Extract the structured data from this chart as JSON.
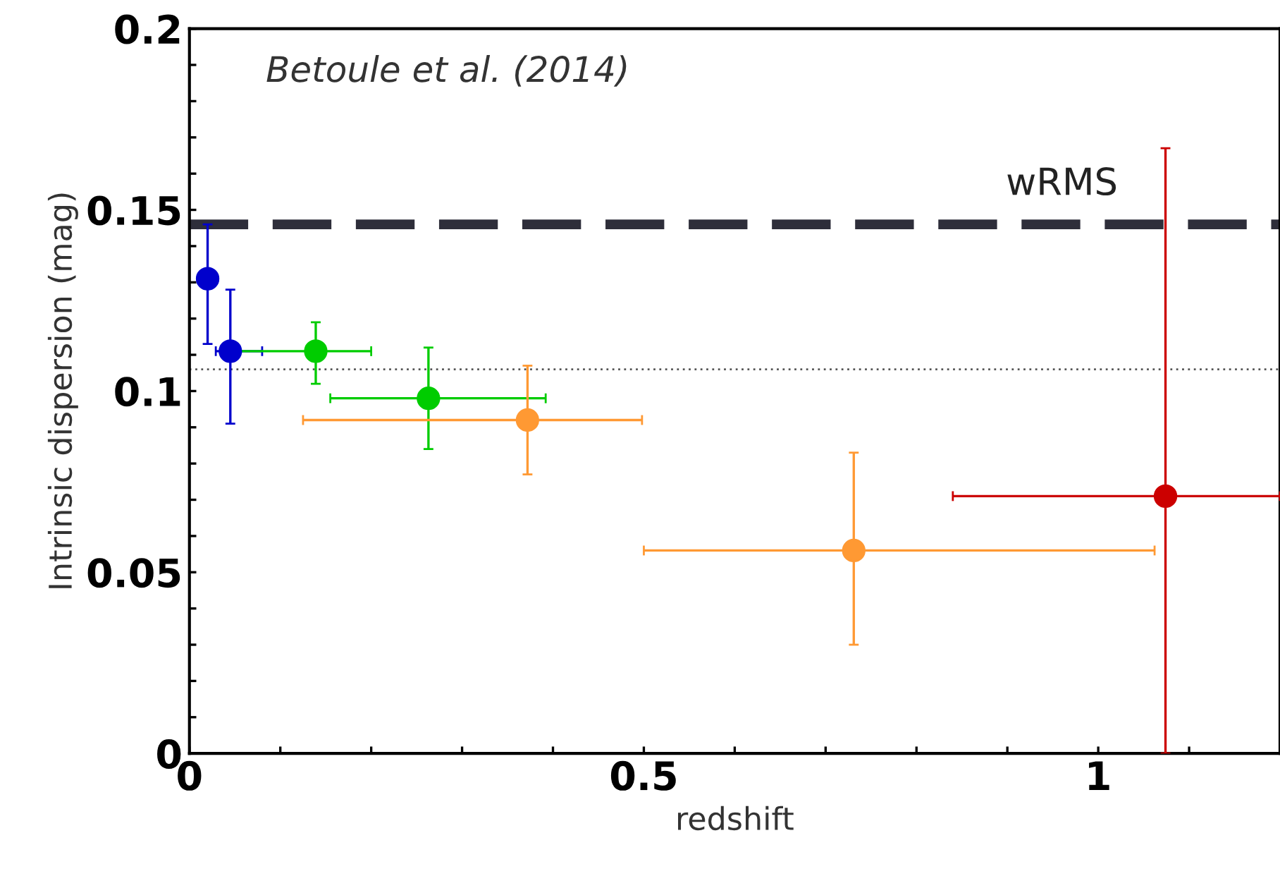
{
  "chart_data": {
    "type": "scatter",
    "xlabel": "redshift",
    "ylabel": "Intrinsic dispersion (mag)",
    "annotations": [
      "Betoule et al. (2014)"
    ],
    "xlim": [
      0,
      1.2
    ],
    "ylim": [
      0,
      0.2
    ],
    "xticks": [
      0,
      {
        "value": 0.1,
        "label": null
      },
      {
        "value": 0.2,
        "label": null
      },
      {
        "value": 0.3,
        "label": null
      },
      {
        "value": 0.4,
        "label": null
      },
      0.5,
      {
        "value": 0.6,
        "label": null
      },
      {
        "value": 0.7,
        "label": null
      },
      {
        "value": 0.8,
        "label": null
      },
      {
        "value": 0.9,
        "label": null
      },
      1,
      {
        "value": 1.1,
        "label": null
      }
    ],
    "yticks": [
      0,
      {
        "value": 0.01,
        "label": null
      },
      {
        "value": 0.02,
        "label": null
      },
      {
        "value": 0.03,
        "label": null
      },
      {
        "value": 0.04,
        "label": null
      },
      0.05,
      {
        "value": 0.06,
        "label": null
      },
      {
        "value": 0.07,
        "label": null
      },
      {
        "value": 0.08,
        "label": null
      },
      {
        "value": 0.09,
        "label": null
      },
      0.1,
      {
        "value": 0.11,
        "label": null
      },
      {
        "value": 0.12,
        "label": null
      },
      {
        "value": 0.13,
        "label": null
      },
      {
        "value": 0.14,
        "label": null
      },
      0.15,
      {
        "value": 0.16,
        "label": null
      },
      {
        "value": 0.17,
        "label": null
      },
      {
        "value": 0.18,
        "label": null
      },
      {
        "value": 0.19,
        "label": null
      },
      0.2
    ],
    "marker": "circle",
    "grid": false,
    "legend": false,
    "ref_lines": [
      {
        "axis": "y",
        "value": 0.146,
        "label": "wRMS",
        "color": "#2e2e3a",
        "line_style": "dashed"
      },
      {
        "axis": "y",
        "value": 0.106,
        "label": null,
        "color": "#555555",
        "line_style": "dotted"
      }
    ],
    "series": [
      {
        "color": "#0000cc",
        "x": [
          0.02,
          0.045
        ],
        "values": [
          0.131,
          0.111
        ],
        "errors": [
          [
            0.113,
            0.146
          ],
          [
            0.091,
            0.128
          ]
        ],
        "xerrors": [
          null,
          [
            0.029,
            0.08
          ]
        ]
      },
      {
        "color": "#00cc00",
        "x": [
          0.139,
          0.263
        ],
        "values": [
          0.111,
          0.098
        ],
        "errors": [
          [
            0.102,
            0.119
          ],
          [
            0.084,
            0.112
          ]
        ],
        "xerrors": [
          [
            0.036,
            0.2
          ],
          [
            0.155,
            0.392
          ]
        ]
      },
      {
        "color": "#ff9933",
        "x": [
          0.372,
          0.731
        ],
        "values": [
          0.092,
          0.056
        ],
        "errors": [
          [
            0.077,
            0.107
          ],
          [
            0.03,
            0.083
          ]
        ],
        "xerrors": [
          [
            0.125,
            0.498
          ],
          [
            0.5,
            1.062
          ]
        ]
      },
      {
        "color": "#cc0000",
        "x": [
          1.074
        ],
        "values": [
          0.071
        ],
        "errors": [
          [
            0,
            0.167
          ]
        ],
        "xerrors": [
          [
            0.84,
            1.2
          ]
        ]
      }
    ]
  }
}
